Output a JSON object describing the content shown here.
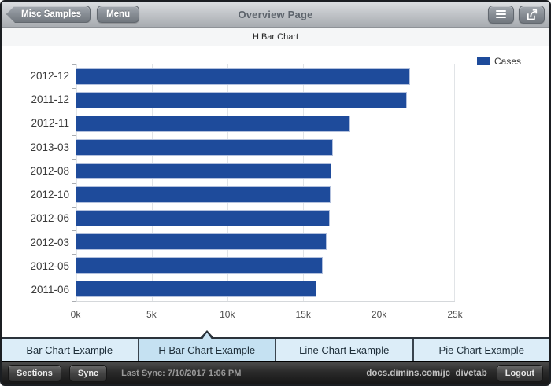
{
  "header": {
    "back_button": "Misc Samples",
    "menu_button": "Menu",
    "title": "Overview Page",
    "icon_buttons": [
      "hamburger-menu-icon",
      "share-export-icon"
    ]
  },
  "subheader": {
    "title": "H Bar Chart"
  },
  "chart_data": {
    "type": "bar",
    "orientation": "horizontal",
    "title": "H Bar Chart",
    "legend": [
      "Cases"
    ],
    "legend_position": "top-right",
    "categories": [
      "2012-12",
      "2011-12",
      "2012-11",
      "2013-03",
      "2012-08",
      "2012-10",
      "2012-06",
      "2012-03",
      "2012-05",
      "2011-06"
    ],
    "values": [
      22100,
      21850,
      18100,
      17000,
      16850,
      16800,
      16750,
      16550,
      16300,
      15900
    ],
    "xlabel": "",
    "ylabel": "",
    "xlim": [
      0,
      25000
    ],
    "xticks": [
      "0k",
      "5k",
      "10k",
      "15k",
      "20k",
      "25k"
    ],
    "xtick_values": [
      0,
      5000,
      10000,
      15000,
      20000,
      25000
    ],
    "grid": true,
    "bar_color": "#1e4b9b"
  },
  "tabs": [
    {
      "label": "Bar Chart Example",
      "selected": false
    },
    {
      "label": "H Bar Chart Example",
      "selected": true
    },
    {
      "label": "Line Chart Example",
      "selected": false
    },
    {
      "label": "Pie Chart Example",
      "selected": false
    }
  ],
  "statusbar": {
    "sections_button": "Sections",
    "sync_button": "Sync",
    "last_sync": "Last Sync: 7/10/2017 1:06 PM",
    "server": "docs.dimins.com/jc_divetab",
    "logout_button": "Logout"
  },
  "colors": {
    "bar": "#1e4b9b",
    "tab_background": "#dcedf8",
    "tab_selected": "#c5e1f2"
  }
}
